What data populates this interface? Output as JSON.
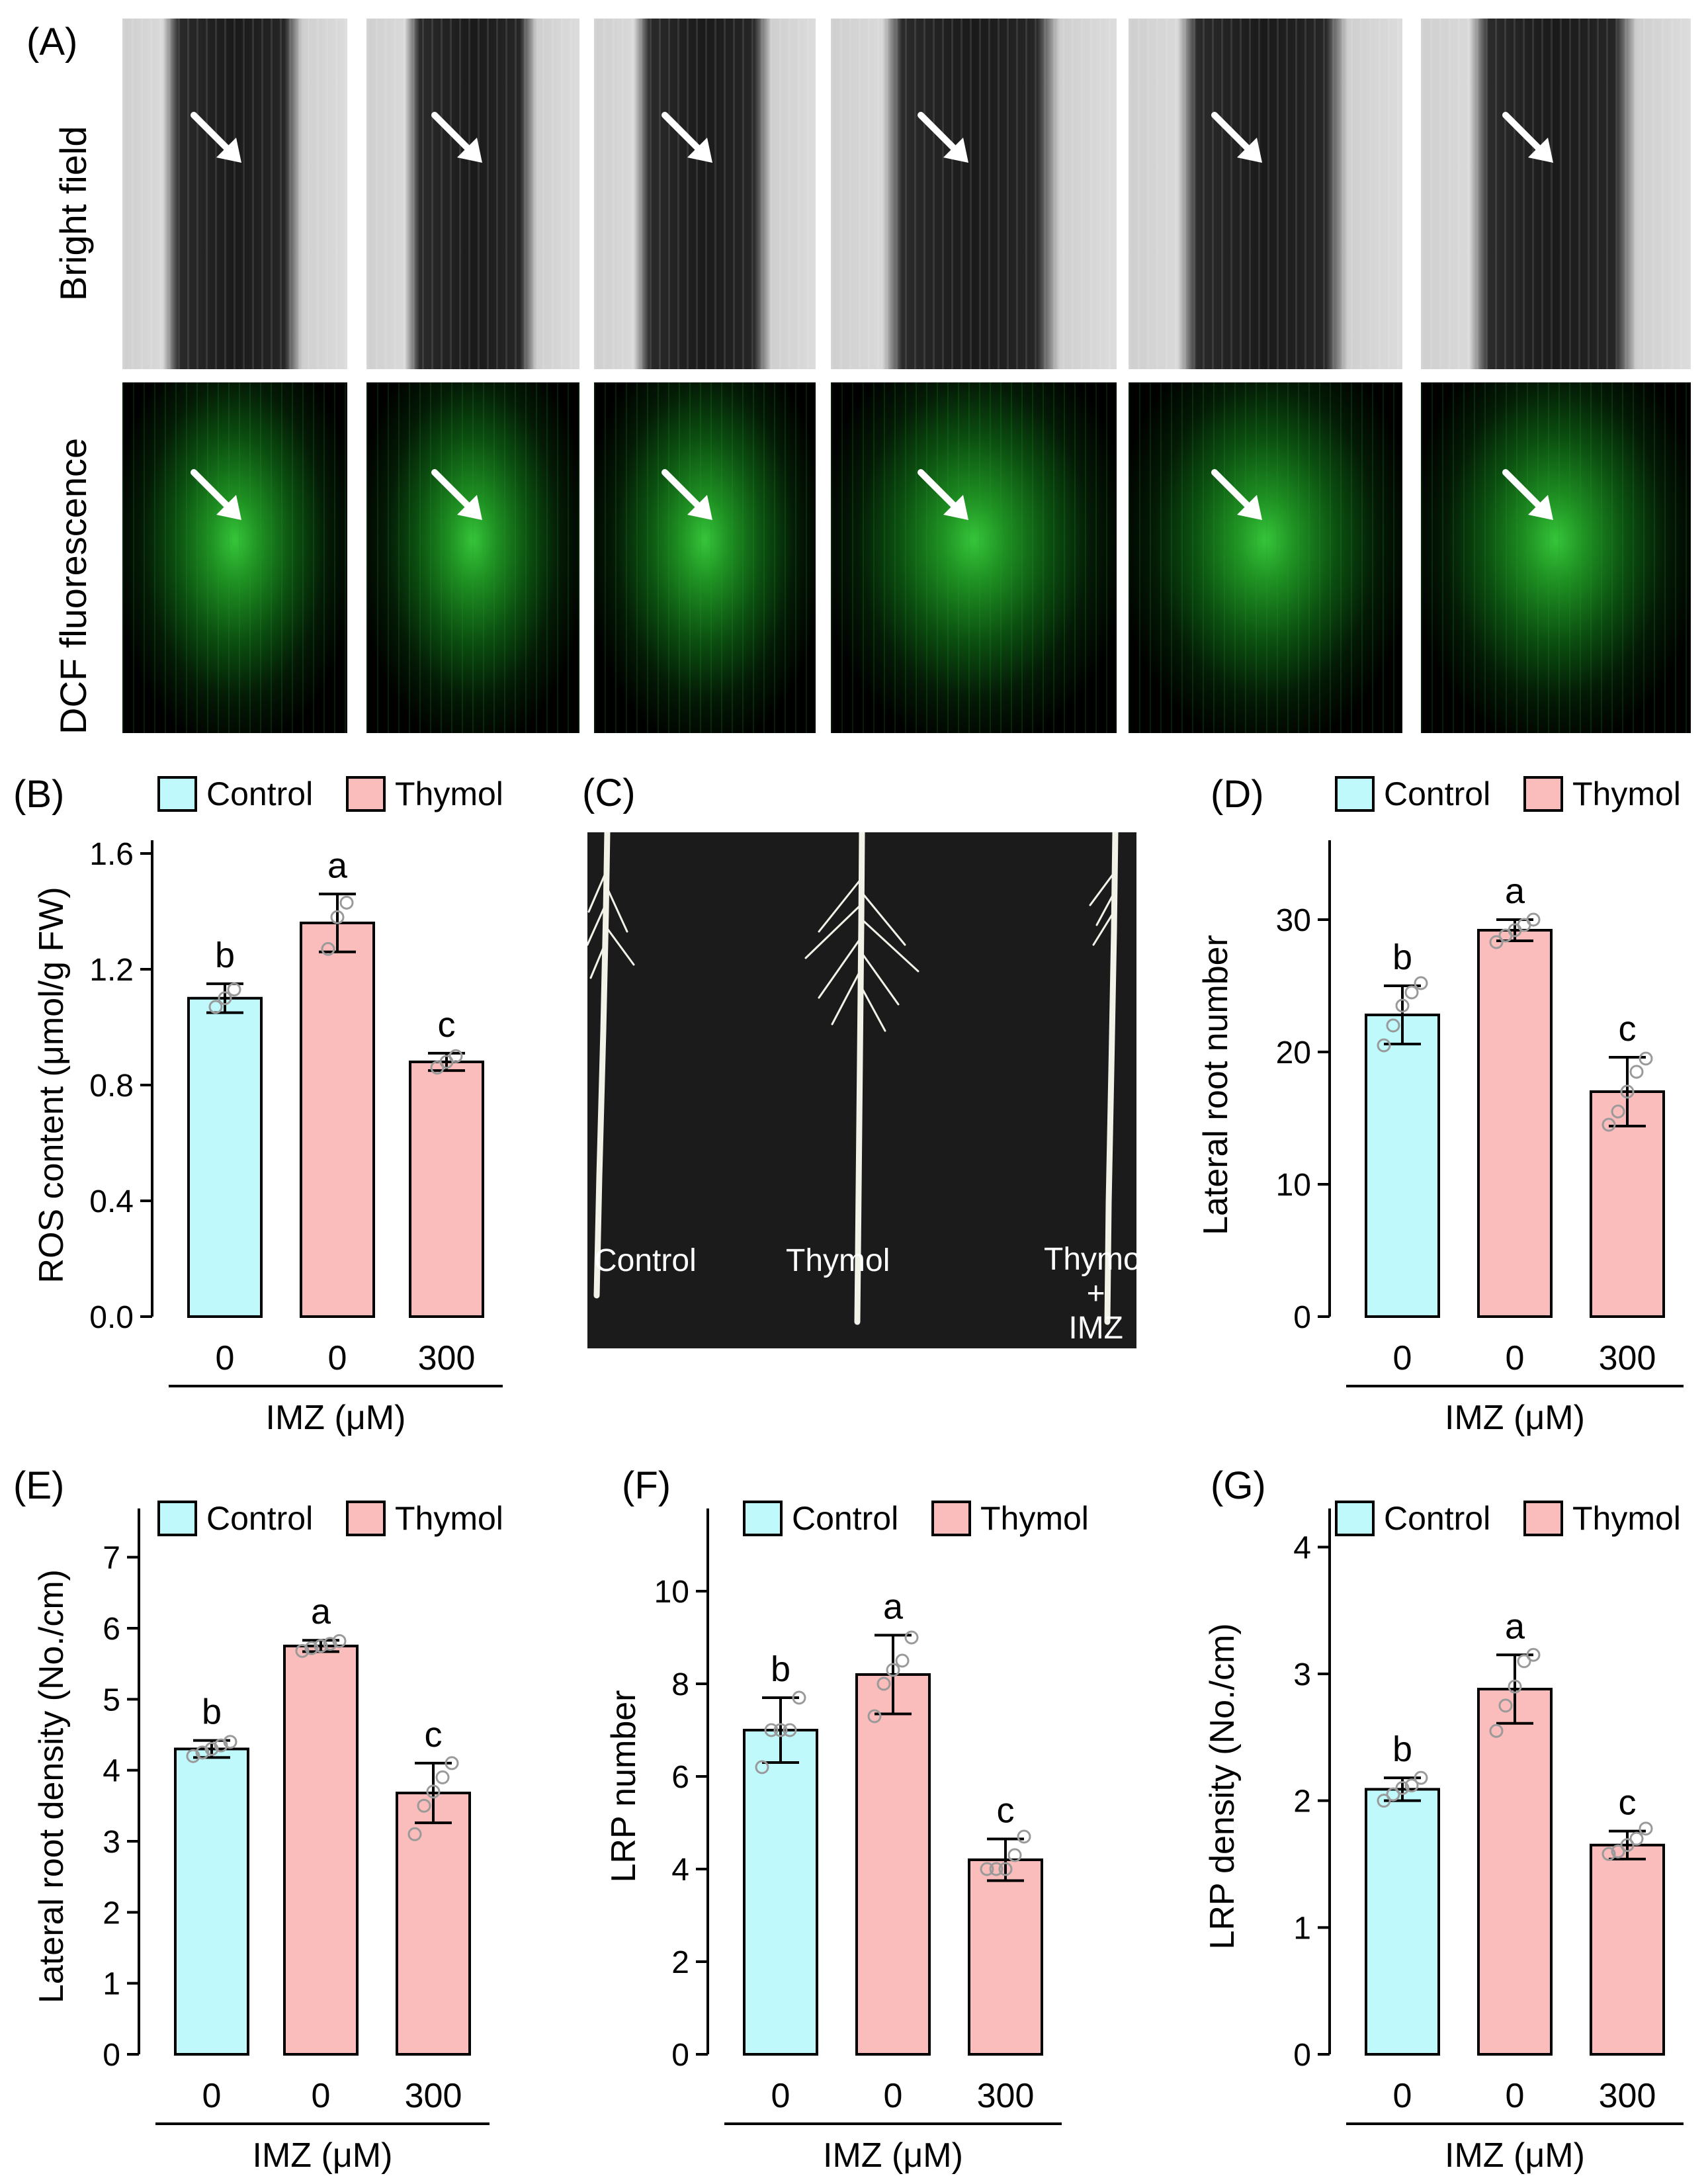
{
  "panel_a": {
    "label": "(A)",
    "row_labels": [
      "Bright field",
      "DCF fluorescence"
    ],
    "icons": [
      "arrow-icon"
    ]
  },
  "panel_c": {
    "label": "(C)",
    "photo_labels": [
      "Control",
      "Thymol",
      "Thymol\n+\nIMZ"
    ]
  },
  "colors": {
    "control": "#bff9fb",
    "thymol": "#fbbcbc",
    "bar_edge": "#000000",
    "point": "#9a9a9a"
  },
  "chart_data": [
    {
      "id": "B",
      "panel_label": "(B)",
      "type": "bar",
      "ylabel": "ROS content (μmol/g FW)",
      "xlabel": "IMZ (μM)",
      "categories": [
        "0",
        "0",
        "300"
      ],
      "ylim": [
        0,
        1.6
      ],
      "yticks": [
        "0.0",
        "0.4",
        "0.8",
        "1.2",
        "1.6"
      ],
      "ytick_values": [
        0,
        0.4,
        0.8,
        1.2,
        1.6
      ],
      "legend": [
        "Control",
        "Thymol"
      ],
      "bar_groups": [
        "Control",
        "Thymol",
        "Thymol"
      ],
      "values": [
        1.1,
        1.36,
        0.88
      ],
      "errors": [
        0.05,
        0.1,
        0.03
      ],
      "letters": [
        "b",
        "a",
        "c"
      ],
      "points": [
        [
          1.07,
          1.1,
          1.13
        ],
        [
          1.27,
          1.38,
          1.43
        ],
        [
          0.86,
          0.88,
          0.9
        ]
      ]
    },
    {
      "id": "D",
      "panel_label": "(D)",
      "type": "bar",
      "ylabel": "Lateral root number",
      "xlabel": "IMZ (μM)",
      "categories": [
        "0",
        "0",
        "300"
      ],
      "ylim": [
        0,
        35
      ],
      "yticks": [
        "0",
        "10",
        "20",
        "30"
      ],
      "ytick_values": [
        0,
        10,
        20,
        30
      ],
      "legend": [
        "Control",
        "Thymol"
      ],
      "bar_groups": [
        "Control",
        "Thymol",
        "Thymol"
      ],
      "values": [
        22.8,
        29.2,
        17.0
      ],
      "errors": [
        2.2,
        0.8,
        2.6
      ],
      "letters": [
        "b",
        "a",
        "c"
      ],
      "points": [
        [
          20.5,
          22,
          23.5,
          24.5,
          25.2
        ],
        [
          28.3,
          28.8,
          29.2,
          29.6,
          30.0
        ],
        [
          14.5,
          15.5,
          17,
          18.5,
          19.5
        ]
      ]
    },
    {
      "id": "E",
      "panel_label": "(E)",
      "type": "bar",
      "ylabel": "Lateral root density (No./cm)",
      "xlabel": "IMZ (μM)",
      "categories": [
        "0",
        "0",
        "300"
      ],
      "ylim": [
        0,
        7.5
      ],
      "yticks": [
        "0",
        "1",
        "2",
        "3",
        "4",
        "5",
        "6",
        "7"
      ],
      "ytick_values": [
        0,
        1,
        2,
        3,
        4,
        5,
        6,
        7
      ],
      "legend": [
        "Control",
        "Thymol"
      ],
      "bar_groups": [
        "Control",
        "Thymol",
        "Thymol"
      ],
      "values": [
        4.3,
        5.75,
        3.68
      ],
      "errors": [
        0.12,
        0.08,
        0.42
      ],
      "letters": [
        "b",
        "a",
        "c"
      ],
      "points": [
        [
          4.2,
          4.25,
          4.3,
          4.35,
          4.4
        ],
        [
          5.68,
          5.72,
          5.75,
          5.78,
          5.82
        ],
        [
          3.1,
          3.5,
          3.7,
          3.9,
          4.1
        ]
      ]
    },
    {
      "id": "F",
      "panel_label": "(F)",
      "type": "bar",
      "ylabel": "LRP number",
      "xlabel": "IMZ (μM)",
      "categories": [
        "0",
        "0",
        "300"
      ],
      "ylim": [
        0,
        11.5
      ],
      "yticks": [
        "0",
        "2",
        "4",
        "6",
        "8",
        "10"
      ],
      "ytick_values": [
        0,
        2,
        4,
        6,
        8,
        10
      ],
      "legend": [
        "Control",
        "Thymol"
      ],
      "bar_groups": [
        "Control",
        "Thymol",
        "Thymol"
      ],
      "values": [
        7.0,
        8.2,
        4.2
      ],
      "errors": [
        0.7,
        0.85,
        0.45
      ],
      "letters": [
        "b",
        "a",
        "c"
      ],
      "points": [
        [
          6.2,
          7,
          7,
          7,
          7.7
        ],
        [
          7.3,
          8,
          8.3,
          8.5,
          9
        ],
        [
          4,
          4,
          4,
          4.3,
          4.7
        ]
      ]
    },
    {
      "id": "G",
      "panel_label": "(G)",
      "type": "bar",
      "ylabel": "LRP density (No./cm)",
      "xlabel": "IMZ (μM)",
      "categories": [
        "0",
        "0",
        "300"
      ],
      "ylim": [
        0,
        4.2
      ],
      "yticks": [
        "0",
        "1",
        "2",
        "3",
        "4"
      ],
      "ytick_values": [
        0,
        1,
        2,
        3,
        4
      ],
      "legend": [
        "Control",
        "Thymol"
      ],
      "bar_groups": [
        "Control",
        "Thymol",
        "Thymol"
      ],
      "values": [
        2.09,
        2.88,
        1.65
      ],
      "errors": [
        0.09,
        0.27,
        0.11
      ],
      "letters": [
        "b",
        "a",
        "c"
      ],
      "points": [
        [
          2.0,
          2.05,
          2.1,
          2.12,
          2.18
        ],
        [
          2.55,
          2.75,
          2.9,
          3.1,
          3.15
        ],
        [
          1.58,
          1.6,
          1.65,
          1.7,
          1.78
        ]
      ]
    }
  ]
}
